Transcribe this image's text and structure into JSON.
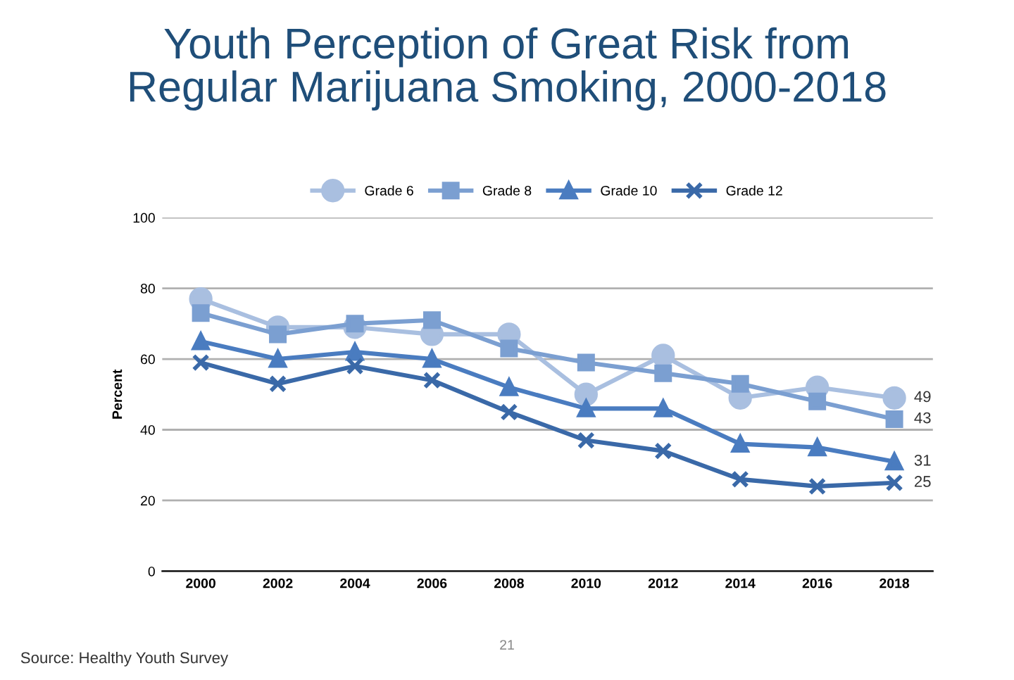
{
  "chart_data": {
    "type": "line",
    "title": "Youth Perception of Great Risk from\nRegular Marijuana Smoking, 2000-2018",
    "ylabel": "Percent",
    "categories": [
      "2000",
      "2002",
      "2004",
      "2006",
      "2008",
      "2010",
      "2012",
      "2014",
      "2016",
      "2018"
    ],
    "series": [
      {
        "name": "Grade 6",
        "color": "#a9bfe0",
        "marker": "circle",
        "values": [
          77,
          69,
          69,
          67,
          67,
          50,
          61,
          49,
          52,
          49
        ],
        "value_labels": [
          null,
          null,
          null,
          null,
          null,
          null,
          null,
          null,
          null,
          "49"
        ]
      },
      {
        "name": "Grade 8",
        "color": "#7b9fd1",
        "marker": "square",
        "values": [
          73,
          67,
          70,
          71,
          63,
          59,
          56,
          53,
          48,
          43
        ],
        "value_labels": [
          null,
          null,
          null,
          null,
          null,
          null,
          null,
          null,
          null,
          "43"
        ]
      },
      {
        "name": "Grade 10",
        "color": "#4a7cc0",
        "marker": "triangle",
        "values": [
          65,
          60,
          62,
          60,
          52,
          46,
          46,
          36,
          35,
          31
        ],
        "value_labels": [
          null,
          null,
          null,
          null,
          null,
          null,
          null,
          null,
          null,
          "31"
        ]
      },
      {
        "name": "Grade 12",
        "color": "#3a69a8",
        "marker": "cross",
        "values": [
          59,
          53,
          58,
          54,
          45,
          37,
          34,
          26,
          24,
          25
        ],
        "value_labels": [
          null,
          null,
          null,
          null,
          null,
          null,
          null,
          null,
          null,
          "25"
        ]
      }
    ],
    "ylim": [
      0,
      100
    ],
    "yticks": [
      0,
      20,
      40,
      60,
      80,
      100
    ],
    "grid": "y",
    "legend": "top",
    "line_style": "solid",
    "annotations": [
      "21",
      "Source: Healthy Youth Survey"
    ]
  }
}
